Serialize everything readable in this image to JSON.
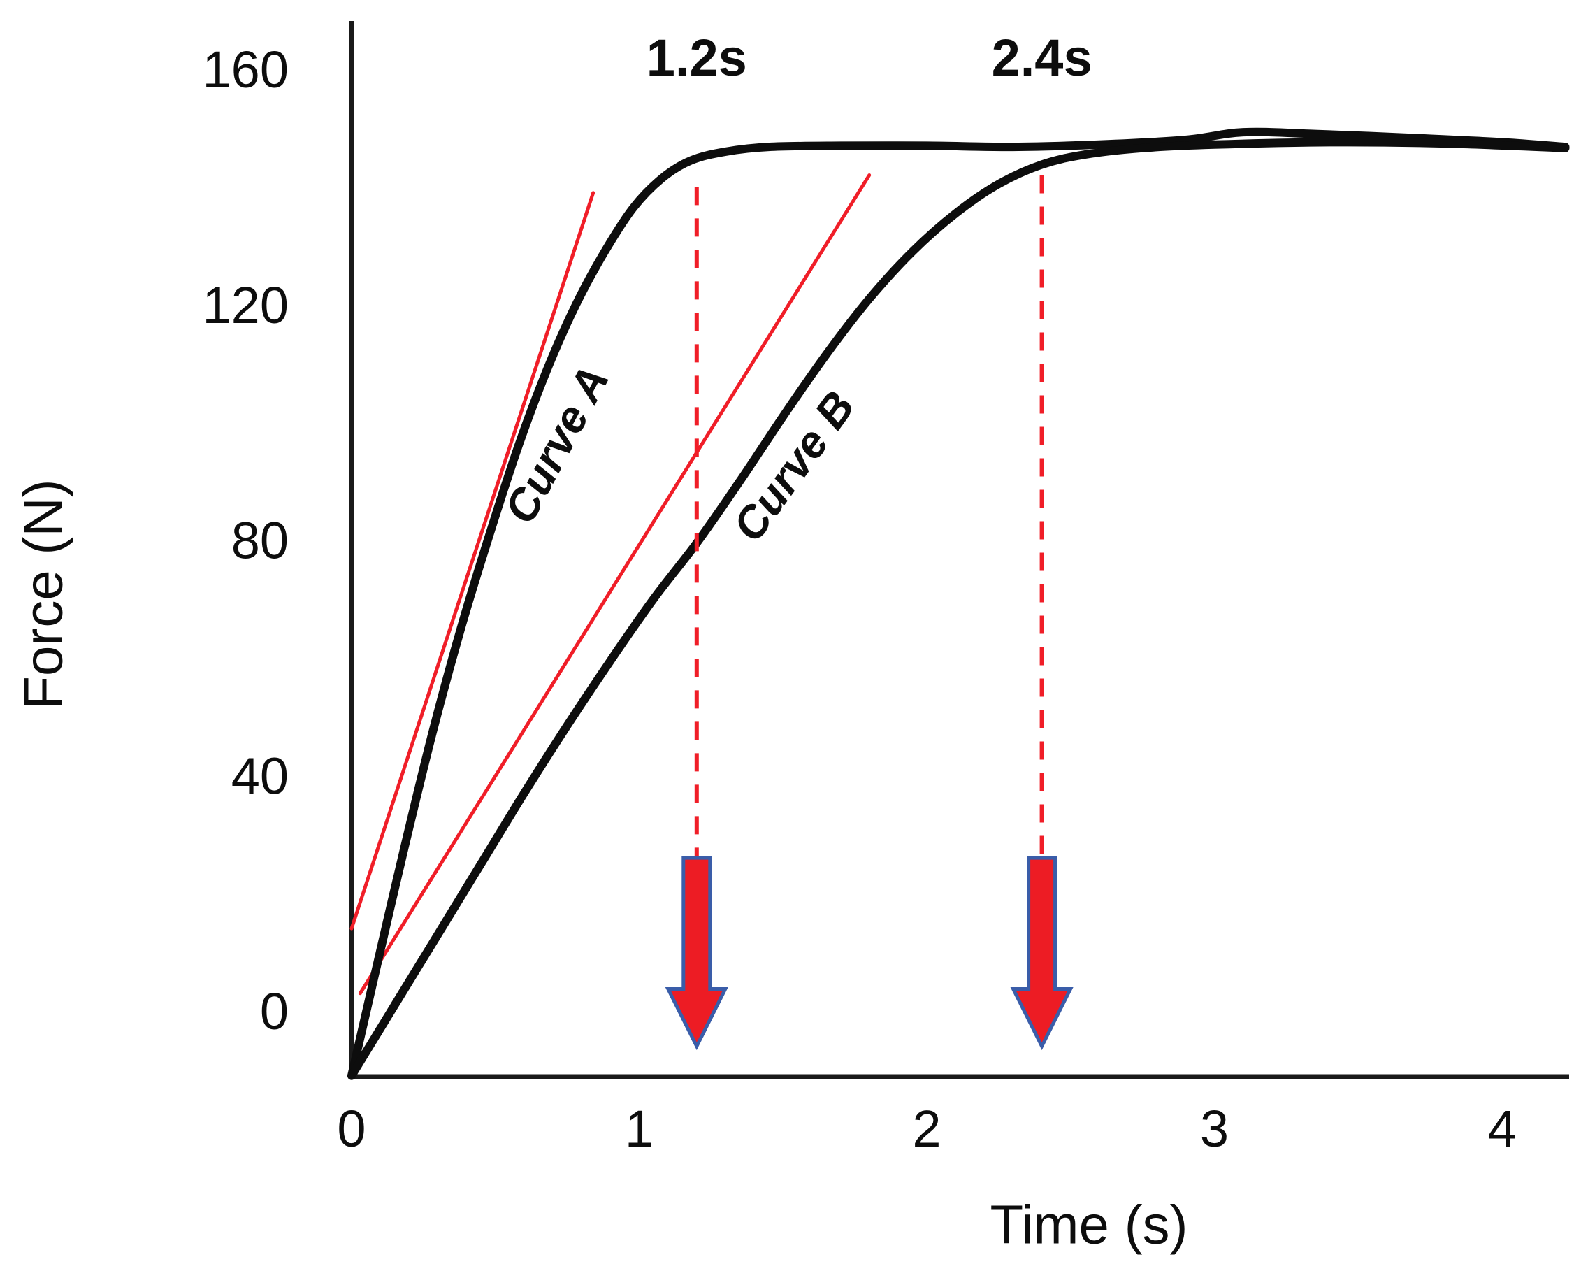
{
  "figure": {
    "background": "#ffffff"
  },
  "chart_data": {
    "type": "line",
    "title": "",
    "xlabel": "Time (s)",
    "ylabel": "Force (N)",
    "x_ticks": [
      0,
      1,
      2,
      3,
      4
    ],
    "y_ticks": [
      0,
      40,
      80,
      120,
      160
    ],
    "xlim": [
      0,
      4.25
    ],
    "ylim": [
      -12,
      168
    ],
    "grid": false,
    "legend": "none",
    "series": [
      {
        "name": "Curve A",
        "color": "#0d0d0d",
        "width": 12,
        "points": [
          [
            0,
            -11
          ],
          [
            0.08,
            6
          ],
          [
            0.18,
            27
          ],
          [
            0.28,
            47
          ],
          [
            0.38,
            65
          ],
          [
            0.48,
            81
          ],
          [
            0.58,
            96
          ],
          [
            0.68,
            109
          ],
          [
            0.78,
            120
          ],
          [
            0.88,
            129
          ],
          [
            0.98,
            136.5
          ],
          [
            1.08,
            141.5
          ],
          [
            1.18,
            144.5
          ],
          [
            1.3,
            146
          ],
          [
            1.45,
            146.8
          ],
          [
            1.7,
            147
          ],
          [
            2,
            147
          ],
          [
            2.3,
            146.8
          ],
          [
            2.6,
            147.2
          ],
          [
            2.9,
            148
          ],
          [
            3.1,
            149.3
          ],
          [
            3.35,
            149
          ],
          [
            3.7,
            148.3
          ],
          [
            4,
            147.6
          ],
          [
            4.22,
            146.8
          ]
        ]
      },
      {
        "name": "Curve B",
        "color": "#0d0d0d",
        "width": 12,
        "points": [
          [
            0,
            -11
          ],
          [
            0.15,
            1
          ],
          [
            0.3,
            13
          ],
          [
            0.45,
            25
          ],
          [
            0.6,
            37
          ],
          [
            0.75,
            48.5
          ],
          [
            0.9,
            59.5
          ],
          [
            1.05,
            70
          ],
          [
            1.2,
            79.5
          ],
          [
            1.35,
            90
          ],
          [
            1.5,
            101
          ],
          [
            1.65,
            111.5
          ],
          [
            1.8,
            121
          ],
          [
            1.95,
            129
          ],
          [
            2.1,
            135.5
          ],
          [
            2.25,
            140.5
          ],
          [
            2.4,
            143.8
          ],
          [
            2.55,
            145.5
          ],
          [
            2.75,
            146.6
          ],
          [
            3,
            147.2
          ],
          [
            3.4,
            147.6
          ],
          [
            3.8,
            147.4
          ],
          [
            4.22,
            146.6
          ]
        ]
      }
    ],
    "tangent_lines": [
      {
        "name": "RFD slope Curve A",
        "color": "#f01e28",
        "width": 5,
        "from": [
          0,
          14
        ],
        "to": [
          0.84,
          139
        ]
      },
      {
        "name": "RFD slope Curve B",
        "color": "#f01e28",
        "width": 5,
        "from": [
          0.03,
          3
        ],
        "to": [
          1.8,
          142
        ]
      }
    ],
    "annotations": [
      {
        "label": "1.2s",
        "x": 1.2,
        "line_top": 140,
        "line_bottom": 26,
        "arrow_tip": -6
      },
      {
        "label": "2.4s",
        "x": 2.4,
        "line_top": 142,
        "line_bottom": 26,
        "arrow_tip": -6
      }
    ],
    "curve_labels": [
      {
        "text": "Curve A",
        "x": 0.76,
        "y": 95,
        "rotation": -62
      },
      {
        "text": "Curve B",
        "x": 1.58,
        "y": 91,
        "rotation": -54
      }
    ],
    "colors": {
      "axis": "#1a1a1a",
      "text": "#0d0d0d",
      "curve": "#0d0d0d",
      "tangent": "#f01e28",
      "dashed": "#f01e28",
      "arrow_fill": "#ed1c24",
      "arrow_stroke": "#3a5da9"
    }
  }
}
